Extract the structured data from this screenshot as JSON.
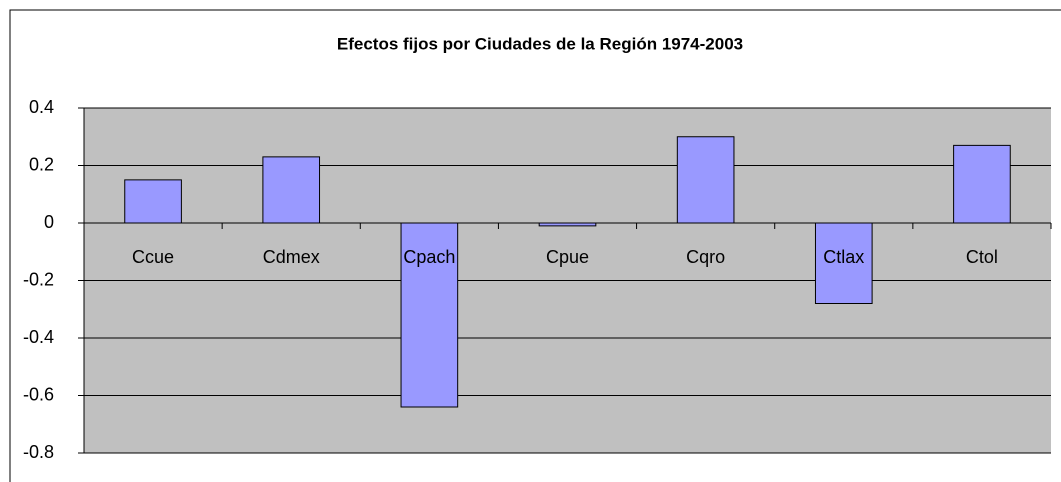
{
  "chart_data": {
    "type": "bar",
    "title": "Efectos fijos por Ciudades de la Región 1974-2003",
    "categories": [
      "Ccue",
      "Cdmex",
      "Cpach",
      "Cpue",
      "Cqro",
      "Ctlax",
      "Ctol"
    ],
    "values": [
      0.15,
      0.23,
      -0.64,
      -0.01,
      0.3,
      -0.28,
      0.27
    ],
    "color": "#9999ff",
    "ylim": [
      -0.8,
      0.4
    ],
    "yticks": [
      -0.8,
      -0.6,
      -0.4,
      -0.2,
      0,
      0.2,
      0.4
    ],
    "grid": true
  }
}
